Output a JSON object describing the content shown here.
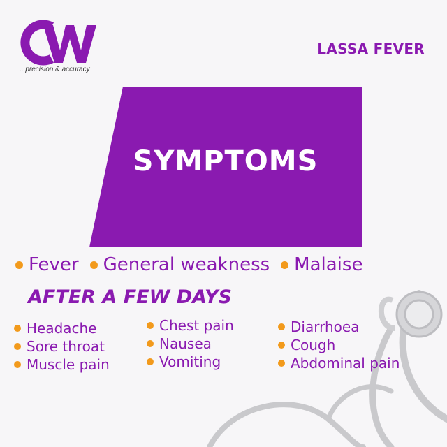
{
  "brand": {
    "tagline": "...precision & accuracy",
    "logo_text": "CW",
    "colors": {
      "purple": "#8a1ab0",
      "orange": "#f29a1c",
      "background": "#f7f6f8"
    }
  },
  "topic": "LASSA FEVER",
  "banner": {
    "title": "SYMPTOMS"
  },
  "main_symptoms": [
    "Fever",
    "General weakness",
    "Malaise"
  ],
  "later": {
    "heading": "AFTER A FEW DAYS",
    "columns": [
      [
        "Headache",
        "Sore throat",
        "Muscle pain"
      ],
      [
        "Chest pain",
        "Nausea",
        "Vomiting"
      ],
      [
        "Diarrhoea",
        "Cough",
        "Abdominal pain"
      ]
    ]
  },
  "decor": {
    "background_icon": "stethoscope-icon",
    "bullet_icon": "orange-dot"
  }
}
